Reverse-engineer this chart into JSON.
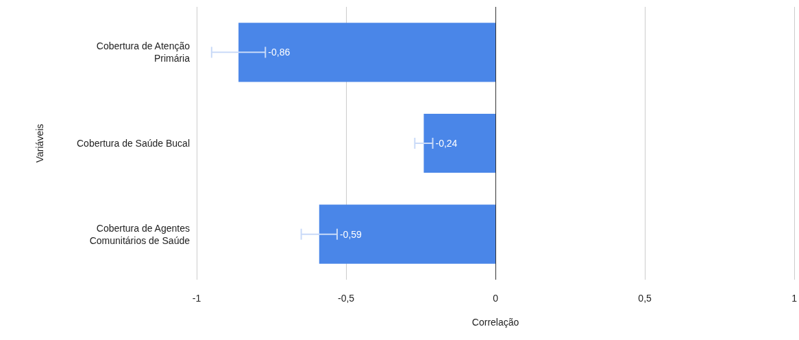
{
  "chart_data": {
    "type": "bar",
    "orientation": "horizontal",
    "xlabel": "Correlação",
    "ylabel": "Variáveis",
    "categories": [
      "Cobertura de Atenção\nPrimária",
      "Cobertura de Saúde Bucal",
      "Cobertura de Agentes\nComunitários de Saúde"
    ],
    "values": [
      -0.86,
      -0.24,
      -0.59
    ],
    "color": "#4a86e8",
    "errors": [
      0.09,
      0.03,
      0.06
    ],
    "value_labels": [
      "-0,86",
      "-0,24",
      "-0,59"
    ],
    "xlim": [
      -1,
      1
    ],
    "xticks": [
      {
        "value": -1,
        "label": "-1"
      },
      {
        "value": -0.5,
        "label": "-0,5"
      },
      {
        "value": 0,
        "label": "0"
      },
      {
        "value": 0.5,
        "label": "0,5"
      },
      {
        "value": 1,
        "label": "1"
      }
    ],
    "grid": "x"
  }
}
